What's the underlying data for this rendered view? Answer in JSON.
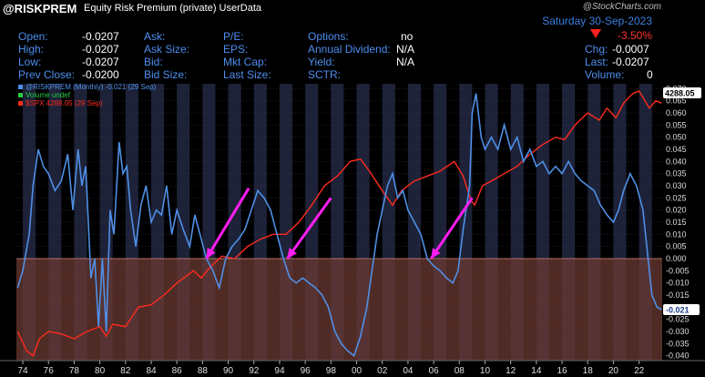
{
  "header": {
    "symbol": "@RISKPREM",
    "description": "Equity Risk Premium (private)",
    "userdata": "UserData",
    "date": "Saturday  30-Sep-2023",
    "credit": "@StockCharts.com",
    "change_pct": "-3.50%"
  },
  "quote": {
    "open_label": "Open:",
    "open": "-0.0207",
    "high_label": "High:",
    "high": "-0.0207",
    "low_label": "Low:",
    "low": "-0.0207",
    "prev_label": "Prev Close:",
    "prev": "-0.0200",
    "ask_label": "Ask:",
    "asksize_label": "Ask Size:",
    "bid_label": "Bid:",
    "bidsize_label": "Bid Size:",
    "pe_label": "P/E:",
    "eps_label": "EPS:",
    "mktcap_label": "Mkt Cap:",
    "lastsize_label": "Last Size:",
    "options_label": "Options:",
    "options": "no",
    "dividend_label": "Annual Dividend:",
    "dividend": "N/A",
    "yield_label": "Yield:",
    "yield": "N/A",
    "sctr_label": "SCTR:",
    "chg_label": "Chg:",
    "chg": "-0.0007",
    "last_label": "Last:",
    "last": "-0.0207",
    "volume_label": "Volume:",
    "volume": "0"
  },
  "colors": {
    "blue": "#4f8fe6",
    "red": "#ff2a1e",
    "magenta": "#ff1ef0",
    "shade": "#6b3a32",
    "accent": "#3b7fe0"
  },
  "chart_data": {
    "type": "line",
    "legend": [
      {
        "label": "@RISKPREM (Monthly) -0.021 (29 Sep)",
        "color": "#4f8fe6"
      },
      {
        "label": "Volume undef",
        "color": "#22cc44"
      },
      {
        "label": "$SPX 4288.05 (29 Sep)",
        "color": "#ff2a1e"
      }
    ],
    "x_ticks": [
      "74",
      "76",
      "78",
      "80",
      "82",
      "84",
      "86",
      "88",
      "90",
      "92",
      "94",
      "96",
      "98",
      "00",
      "02",
      "04",
      "06",
      "08",
      "10",
      "12",
      "14",
      "16",
      "18",
      "20",
      "22"
    ],
    "y_ticks": [
      "0.070",
      "0.065",
      "0.060",
      "0.055",
      "0.050",
      "0.045",
      "0.040",
      "0.035",
      "0.030",
      "0.025",
      "0.020",
      "0.015",
      "0.010",
      "0.005",
      "0.000",
      "-0.005",
      "-0.010",
      "-0.015",
      "-0.020",
      "-0.025",
      "-0.030",
      "-0.035",
      "-0.040"
    ],
    "ylim": [
      -0.042,
      0.072
    ],
    "xlim": [
      1973.5,
      2023.8
    ],
    "negative_region_below": 0,
    "last_risk_label": "-0.021",
    "last_spx_label": "4288.05",
    "risk_premium_series": [
      [
        1973.6,
        -0.012
      ],
      [
        1974.0,
        -0.005
      ],
      [
        1974.5,
        0.01
      ],
      [
        1974.8,
        0.03
      ],
      [
        1975.2,
        0.045
      ],
      [
        1975.6,
        0.038
      ],
      [
        1976.0,
        0.035
      ],
      [
        1976.5,
        0.028
      ],
      [
        1977.0,
        0.032
      ],
      [
        1977.5,
        0.043
      ],
      [
        1977.9,
        0.02
      ],
      [
        1978.3,
        0.045
      ],
      [
        1978.6,
        0.03
      ],
      [
        1978.9,
        0.038
      ],
      [
        1979.3,
        -0.008
      ],
      [
        1979.6,
        0.0
      ],
      [
        1979.9,
        -0.028
      ],
      [
        1980.2,
        0.0
      ],
      [
        1980.5,
        -0.03
      ],
      [
        1980.8,
        0.02
      ],
      [
        1981.1,
        0.01
      ],
      [
        1981.5,
        0.048
      ],
      [
        1981.8,
        0.035
      ],
      [
        1982.1,
        0.038
      ],
      [
        1982.4,
        0.02
      ],
      [
        1982.8,
        0.005
      ],
      [
        1983.2,
        0.022
      ],
      [
        1983.6,
        0.03
      ],
      [
        1984.0,
        0.015
      ],
      [
        1984.4,
        0.02
      ],
      [
        1984.8,
        0.018
      ],
      [
        1985.2,
        0.03
      ],
      [
        1985.6,
        0.01
      ],
      [
        1986.0,
        0.02
      ],
      [
        1986.5,
        0.012
      ],
      [
        1987.0,
        0.005
      ],
      [
        1987.4,
        0.018
      ],
      [
        1987.9,
        0.008
      ],
      [
        1988.3,
        0.0
      ],
      [
        1988.8,
        -0.005
      ],
      [
        1989.3,
        -0.012
      ],
      [
        1989.8,
        0.0
      ],
      [
        1990.3,
        0.005
      ],
      [
        1990.8,
        0.008
      ],
      [
        1991.3,
        0.012
      ],
      [
        1991.8,
        0.02
      ],
      [
        1992.3,
        0.028
      ],
      [
        1992.8,
        0.025
      ],
      [
        1993.3,
        0.02
      ],
      [
        1993.8,
        0.01
      ],
      [
        1994.3,
        0.0
      ],
      [
        1994.8,
        -0.008
      ],
      [
        1995.3,
        -0.01
      ],
      [
        1995.8,
        -0.008
      ],
      [
        1996.3,
        -0.01
      ],
      [
        1996.8,
        -0.012
      ],
      [
        1997.3,
        -0.015
      ],
      [
        1997.8,
        -0.02
      ],
      [
        1998.3,
        -0.03
      ],
      [
        1998.8,
        -0.035
      ],
      [
        1999.3,
        -0.038
      ],
      [
        1999.8,
        -0.04
      ],
      [
        2000.3,
        -0.032
      ],
      [
        2000.8,
        -0.02
      ],
      [
        2001.2,
        -0.005
      ],
      [
        2001.6,
        0.01
      ],
      [
        2002.0,
        0.02
      ],
      [
        2002.4,
        0.03
      ],
      [
        2002.8,
        0.035
      ],
      [
        2003.2,
        0.025
      ],
      [
        2003.6,
        0.028
      ],
      [
        2004.0,
        0.02
      ],
      [
        2004.5,
        0.015
      ],
      [
        2005.0,
        0.01
      ],
      [
        2005.5,
        0.0
      ],
      [
        2006.0,
        -0.003
      ],
      [
        2006.5,
        -0.005
      ],
      [
        2007.0,
        -0.008
      ],
      [
        2007.5,
        -0.01
      ],
      [
        2007.9,
        -0.005
      ],
      [
        2008.3,
        0.012
      ],
      [
        2008.8,
        0.03
      ],
      [
        2009.0,
        0.06
      ],
      [
        2009.3,
        0.068
      ],
      [
        2009.7,
        0.05
      ],
      [
        2010.0,
        0.045
      ],
      [
        2010.5,
        0.05
      ],
      [
        2011.0,
        0.045
      ],
      [
        2011.5,
        0.055
      ],
      [
        2012.0,
        0.045
      ],
      [
        2012.5,
        0.05
      ],
      [
        2013.0,
        0.04
      ],
      [
        2013.5,
        0.045
      ],
      [
        2014.0,
        0.038
      ],
      [
        2014.5,
        0.04
      ],
      [
        2015.0,
        0.035
      ],
      [
        2015.5,
        0.038
      ],
      [
        2016.0,
        0.035
      ],
      [
        2016.5,
        0.04
      ],
      [
        2017.0,
        0.035
      ],
      [
        2017.5,
        0.032
      ],
      [
        2018.0,
        0.03
      ],
      [
        2018.5,
        0.028
      ],
      [
        2019.0,
        0.022
      ],
      [
        2019.5,
        0.018
      ],
      [
        2020.0,
        0.015
      ],
      [
        2020.4,
        0.02
      ],
      [
        2020.8,
        0.028
      ],
      [
        2021.3,
        0.035
      ],
      [
        2021.8,
        0.03
      ],
      [
        2022.3,
        0.02
      ],
      [
        2022.7,
        0.0
      ],
      [
        2023.0,
        -0.015
      ],
      [
        2023.4,
        -0.02
      ],
      [
        2023.75,
        -0.021
      ]
    ],
    "spx_series": [
      [
        1973.6,
        -0.03
      ],
      [
        1974.3,
        -0.038
      ],
      [
        1974.8,
        -0.04
      ],
      [
        1975.3,
        -0.033
      ],
      [
        1976.0,
        -0.03
      ],
      [
        1977.0,
        -0.031
      ],
      [
        1978.0,
        -0.033
      ],
      [
        1979.0,
        -0.03
      ],
      [
        1980.0,
        -0.028
      ],
      [
        1980.5,
        -0.032
      ],
      [
        1981.0,
        -0.027
      ],
      [
        1982.0,
        -0.028
      ],
      [
        1983.0,
        -0.02
      ],
      [
        1984.0,
        -0.019
      ],
      [
        1985.0,
        -0.015
      ],
      [
        1986.0,
        -0.01
      ],
      [
        1987.3,
        -0.005
      ],
      [
        1987.9,
        -0.008
      ],
      [
        1988.5,
        -0.004
      ],
      [
        1989.5,
        0.001
      ],
      [
        1990.5,
        0.0
      ],
      [
        1991.5,
        0.005
      ],
      [
        1992.5,
        0.008
      ],
      [
        1993.5,
        0.01
      ],
      [
        1994.5,
        0.01
      ],
      [
        1995.5,
        0.015
      ],
      [
        1996.5,
        0.022
      ],
      [
        1997.5,
        0.03
      ],
      [
        1998.5,
        0.034
      ],
      [
        1999.5,
        0.04
      ],
      [
        2000.3,
        0.041
      ],
      [
        2001.0,
        0.036
      ],
      [
        2002.0,
        0.028
      ],
      [
        2002.8,
        0.022
      ],
      [
        2003.5,
        0.028
      ],
      [
        2004.5,
        0.032
      ],
      [
        2005.5,
        0.034
      ],
      [
        2006.5,
        0.036
      ],
      [
        2007.6,
        0.04
      ],
      [
        2008.3,
        0.034
      ],
      [
        2008.9,
        0.024
      ],
      [
        2009.2,
        0.022
      ],
      [
        2009.8,
        0.03
      ],
      [
        2010.5,
        0.032
      ],
      [
        2011.5,
        0.035
      ],
      [
        2012.5,
        0.038
      ],
      [
        2013.5,
        0.043
      ],
      [
        2014.5,
        0.047
      ],
      [
        2015.5,
        0.05
      ],
      [
        2016.2,
        0.049
      ],
      [
        2017.0,
        0.055
      ],
      [
        2018.0,
        0.06
      ],
      [
        2018.9,
        0.057
      ],
      [
        2019.5,
        0.062
      ],
      [
        2020.2,
        0.058
      ],
      [
        2020.8,
        0.064
      ],
      [
        2021.5,
        0.068
      ],
      [
        2022.0,
        0.069
      ],
      [
        2022.8,
        0.062
      ],
      [
        2023.3,
        0.065
      ],
      [
        2023.75,
        0.064
      ]
    ],
    "annotation_arrows": [
      {
        "from": [
          1991.6,
          0.029
        ],
        "to": [
          1988.3,
          0.0
        ]
      },
      {
        "from": [
          1998.0,
          0.025
        ],
        "to": [
          1994.6,
          0.0
        ]
      },
      {
        "from": [
          2009.0,
          0.025
        ],
        "to": [
          2005.8,
          0.0
        ]
      }
    ]
  }
}
